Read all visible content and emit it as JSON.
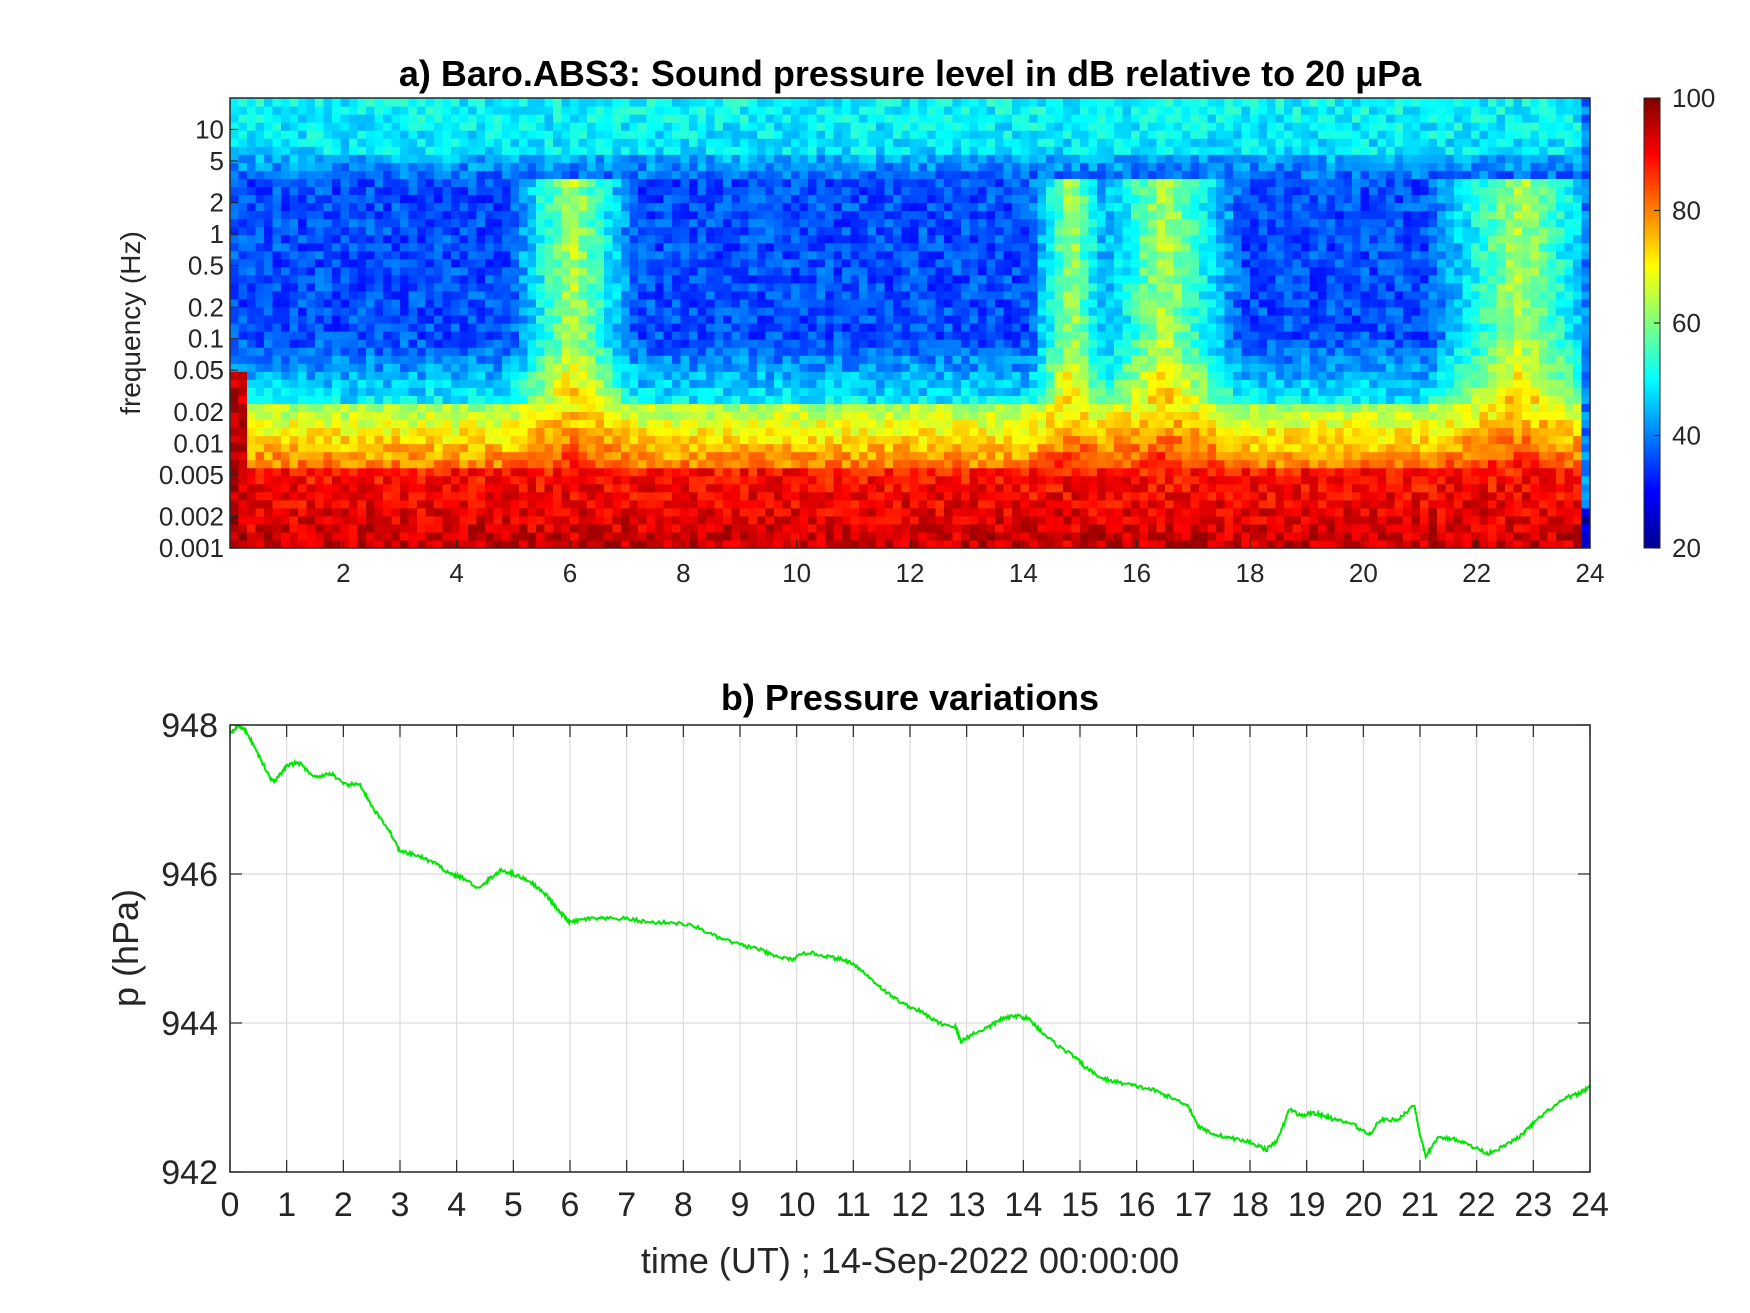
{
  "chart_data": [
    {
      "type": "heatmap",
      "title": "a) Baro.ABS3: Sound pressure level in dB relative to 20 μPa",
      "xlabel": "",
      "ylabel": "frequency (Hz)",
      "x_ticks": [
        2,
        4,
        6,
        8,
        10,
        12,
        14,
        16,
        18,
        20,
        22,
        24
      ],
      "xlim": [
        0,
        24
      ],
      "y_scale": "log",
      "ylim": [
        0.001,
        20
      ],
      "y_ticks": [
        0.001,
        0.002,
        0.005,
        0.01,
        0.02,
        0.05,
        0.1,
        0.2,
        0.5,
        1,
        2,
        5,
        10
      ],
      "y_tick_labels": [
        "0.001",
        "0.002",
        "0.005",
        "0.01",
        "0.02",
        "0.05",
        "0.1",
        "0.2",
        "0.5",
        "1",
        "2",
        "5",
        "10"
      ],
      "colorbar": {
        "ticks": [
          20,
          40,
          60,
          80,
          100
        ],
        "range": [
          20,
          100
        ],
        "colormap": "jet"
      },
      "description_levels": {
        "high_freq_band_db": 48,
        "quiet_mid_band_db": 30,
        "low_freq_band_db": 90
      },
      "active_periods_h": [
        [
          5.3,
          6.8
        ],
        [
          14.5,
          15.2
        ],
        [
          15.5,
          17.5
        ],
        [
          21.5,
          24
        ]
      ]
    },
    {
      "type": "line",
      "title": "b) Pressure variations",
      "xlabel": "time (UT) ; 14-Sep-2022 00:00:00",
      "ylabel": "p (hPa)",
      "xlim": [
        0,
        24
      ],
      "ylim": [
        942,
        948
      ],
      "x_ticks": [
        0,
        1,
        2,
        3,
        4,
        5,
        6,
        7,
        8,
        9,
        10,
        11,
        12,
        13,
        14,
        15,
        16,
        17,
        18,
        19,
        20,
        21,
        22,
        23,
        24
      ],
      "y_ticks": [
        942,
        944,
        946,
        948
      ],
      "grid": true,
      "line_color": "#00e600",
      "x": [
        0,
        0.15,
        0.3,
        0.5,
        0.7,
        0.8,
        1.0,
        1.2,
        1.5,
        1.8,
        2.0,
        2.3,
        2.5,
        2.8,
        3.0,
        3.3,
        3.6,
        3.9,
        4.1,
        4.4,
        4.6,
        4.8,
        5.0,
        5.3,
        5.6,
        5.8,
        6.0,
        6.3,
        6.6,
        7.0,
        7.4,
        7.8,
        8.2,
        8.6,
        9.0,
        9.3,
        9.6,
        9.9,
        10.2,
        10.5,
        10.8,
        11.0,
        11.3,
        11.6,
        11.9,
        12.2,
        12.5,
        12.8,
        12.9,
        13.1,
        13.4,
        13.6,
        13.9,
        14.1,
        14.3,
        14.6,
        14.9,
        15.1,
        15.4,
        15.7,
        16.0,
        16.3,
        16.6,
        16.9,
        17.1,
        17.4,
        17.7,
        18.0,
        18.3,
        18.5,
        18.7,
        18.9,
        19.1,
        19.3,
        19.5,
        19.8,
        20.1,
        20.3,
        20.6,
        20.9,
        21.0,
        21.1,
        21.3,
        21.6,
        21.9,
        22.2,
        22.5,
        22.8,
        23.0,
        23.3,
        23.6,
        23.8,
        24.0
      ],
      "values": [
        947.9,
        948.0,
        947.9,
        947.6,
        947.3,
        947.25,
        947.45,
        947.5,
        947.3,
        947.35,
        947.2,
        947.2,
        946.9,
        946.6,
        946.3,
        946.25,
        946.15,
        946.0,
        945.95,
        945.8,
        945.95,
        946.05,
        946.0,
        945.9,
        945.7,
        945.5,
        945.35,
        945.4,
        945.4,
        945.4,
        945.35,
        945.35,
        945.3,
        945.15,
        945.05,
        945.0,
        944.9,
        944.85,
        944.95,
        944.9,
        944.85,
        944.8,
        944.6,
        944.4,
        944.25,
        944.15,
        944.0,
        943.95,
        943.75,
        943.85,
        943.95,
        944.05,
        944.1,
        944.05,
        943.9,
        943.7,
        943.55,
        943.4,
        943.25,
        943.2,
        943.15,
        943.1,
        943.0,
        942.9,
        942.6,
        942.5,
        942.45,
        942.4,
        942.3,
        942.45,
        942.85,
        942.75,
        942.8,
        942.75,
        942.7,
        942.65,
        942.5,
        942.7,
        942.7,
        942.9,
        942.5,
        942.2,
        942.45,
        942.45,
        942.35,
        942.25,
        942.35,
        942.5,
        942.65,
        942.85,
        943.0,
        943.05,
        943.15
      ]
    }
  ]
}
